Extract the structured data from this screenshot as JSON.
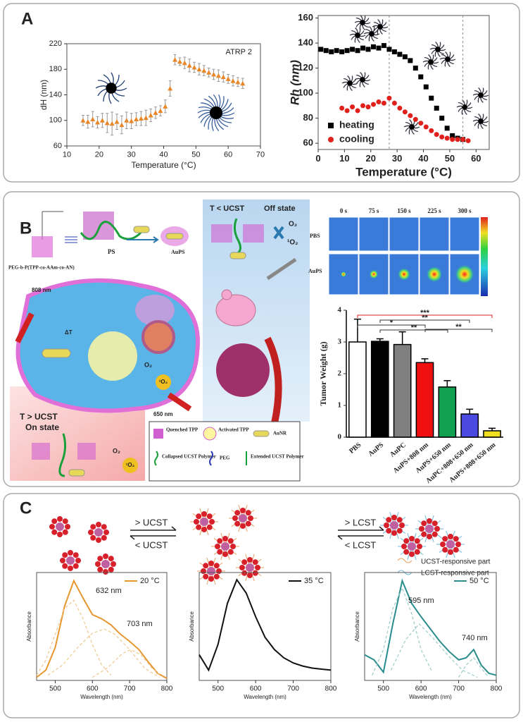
{
  "panels": {
    "a": "A",
    "b": "B",
    "c": "C"
  },
  "diagram": {
    "polymer": "PEG-b-P(TPP-co-AAm-co-AN)",
    "ps": "PS",
    "aups": "AuPS",
    "off_state_1": "T < UCST",
    "off_state_2": "Off state",
    "laser808": "808 nm",
    "laser650": "650 nm",
    "on_state_1": "T > UCST",
    "on_state_2": "On state",
    "o2": "O₂",
    "singlet": "¹O₂",
    "dt": "ΔT",
    "legend": [
      "Quenched TPP",
      "Activated TPP",
      "AuNR",
      "Collapsed UCST Polymer",
      "PEG",
      "Extended UCST Polymer"
    ],
    "thermal_times": [
      "0 s",
      "75 s",
      "150 s",
      "225 s",
      "300 s"
    ],
    "thermal_rows": [
      "PBS",
      "AuPS"
    ],
    "ucst_up": "> UCST",
    "ucst_down": "< UCST",
    "lcst_up": "> LCST",
    "lcst_down": "< LCST",
    "ucst_part": "UCST-responsive part",
    "lcst_part": "LCST-responsive part"
  },
  "chart_data": [
    {
      "type": "scatter",
      "xlabel": "Temperature (°C)",
      "ylabel": "dH (nm)",
      "annotation": "ATRP 2",
      "xlim": [
        10,
        70
      ],
      "xticks": [
        10,
        20,
        30,
        40,
        50,
        60,
        70
      ],
      "ylim": [
        60,
        220
      ],
      "yticks": [
        60,
        100,
        140,
        180,
        220
      ],
      "series": [
        {
          "color": "#e8862a",
          "marker": "triangle",
          "x": [
            15,
            16.5,
            18,
            19.5,
            21,
            22.5,
            24,
            25.5,
            27,
            28.5,
            30,
            31.5,
            33,
            34.5,
            36,
            37.5,
            39,
            40.5,
            42,
            43.5,
            45,
            46.5,
            48,
            49.5,
            51,
            52.5,
            54,
            55.5,
            57,
            58.5,
            60,
            61.5,
            63,
            64.5
          ],
          "values": [
            100,
            98,
            102,
            97,
            100,
            96,
            95,
            98,
            93,
            100,
            99,
            102,
            103,
            104,
            108,
            112,
            115,
            122,
            150,
            195,
            192,
            190,
            186,
            183,
            180,
            178,
            175,
            172,
            170,
            168,
            165,
            162,
            160,
            158
          ],
          "errors": [
            8,
            10,
            12,
            9,
            11,
            15,
            18,
            12,
            14,
            13,
            12,
            10,
            11,
            12,
            10,
            9,
            8,
            10,
            12,
            8,
            6,
            9,
            10,
            8,
            9,
            8,
            7,
            8,
            9,
            8,
            7,
            8,
            7,
            8
          ]
        }
      ]
    },
    {
      "type": "scatter",
      "xlabel": "Temperature (°C)",
      "ylabel": "Rh (nm)",
      "xlim": [
        0,
        65
      ],
      "xticks": [
        0,
        10,
        20,
        30,
        40,
        50,
        60
      ],
      "ylim": [
        55,
        162
      ],
      "yticks": [
        60,
        80,
        100,
        120,
        140,
        160
      ],
      "reference_lines": [
        27,
        55
      ],
      "series": [
        {
          "name": "heating",
          "color": "#000000",
          "marker": "square",
          "x": [
            1,
            3,
            5,
            7,
            9,
            11,
            13,
            15,
            17,
            19,
            21,
            23,
            25,
            27,
            29,
            31,
            33,
            35,
            37,
            39,
            41,
            43,
            45,
            47,
            49,
            51,
            53,
            55
          ],
          "values": [
            135,
            134,
            133,
            134,
            133,
            134,
            135,
            134,
            136,
            135,
            137,
            136,
            138,
            135,
            133,
            131,
            129,
            126,
            120,
            113,
            105,
            96,
            88,
            80,
            72,
            66,
            64,
            63
          ]
        },
        {
          "name": "cooling",
          "color": "#e0201b",
          "marker": "circle",
          "x": [
            9,
            11,
            13,
            15,
            17,
            19,
            21,
            23,
            25,
            27,
            29,
            31,
            33,
            35,
            37,
            39,
            41,
            43,
            45,
            47,
            49,
            51,
            53,
            55,
            57
          ],
          "values": [
            88,
            86,
            89,
            86,
            90,
            89,
            91,
            93,
            92,
            96,
            92,
            88,
            85,
            82,
            79,
            76,
            73,
            70,
            67,
            65,
            64,
            63,
            63,
            63,
            62
          ]
        }
      ]
    },
    {
      "type": "bar",
      "ylabel": "Tumor Weight  (g)",
      "categories": [
        "PBS",
        "AuPS",
        "AuPC",
        "AuPS+808 nm",
        "AuPS+650 nm",
        "AuPC+808+650 nm",
        "AuPS+808+650 nm"
      ],
      "values": [
        3.0,
        3.02,
        2.92,
        2.35,
        1.58,
        0.73,
        0.2
      ],
      "errors": [
        0.72,
        0.08,
        0.4,
        0.12,
        0.2,
        0.15,
        0.08
      ],
      "colors": [
        "#ffffff",
        "#000000",
        "#808080",
        "#f01010",
        "#10a050",
        "#4a4ae0",
        "#f0e020"
      ],
      "ylim": [
        0,
        4
      ],
      "yticks": [
        0,
        1,
        2,
        3,
        4
      ],
      "annotations": [
        "***",
        "**",
        "*",
        "**",
        "**"
      ]
    },
    {
      "type": "line",
      "xlabel": "Wavelength (nm)",
      "ylabel": "Absorbance",
      "annotations": [
        "632 nm",
        "703 nm"
      ],
      "xlim": [
        450,
        800
      ],
      "xticks": [
        500,
        600,
        700,
        800
      ],
      "ylim": [
        0,
        1.05
      ],
      "series": [
        {
          "name": "20 °C",
          "color": "#e8962e",
          "x": [
            450,
            475,
            500,
            525,
            550,
            575,
            600,
            625,
            650,
            675,
            700,
            725,
            750,
            775,
            800
          ],
          "values": [
            0.03,
            0.1,
            0.32,
            0.72,
            0.97,
            0.8,
            0.64,
            0.6,
            0.54,
            0.45,
            0.38,
            0.3,
            0.18,
            0.07,
            0.02
          ]
        },
        {
          "color": "#f0c890",
          "dash": true,
          "x": [
            450,
            475,
            500,
            525,
            550,
            575,
            600,
            625,
            650
          ],
          "values": [
            0.05,
            0.2,
            0.45,
            0.7,
            0.78,
            0.6,
            0.35,
            0.15,
            0.05
          ]
        },
        {
          "color": "#f0c890",
          "dash": true,
          "x": [
            480,
            520,
            560,
            600,
            632,
            660,
            700,
            740,
            780
          ],
          "values": [
            0.05,
            0.15,
            0.32,
            0.46,
            0.5,
            0.45,
            0.3,
            0.12,
            0.03
          ]
        },
        {
          "color": "#f0c890",
          "dash": true,
          "x": [
            600,
            640,
            680,
            703,
            730,
            760,
            790
          ],
          "values": [
            0.03,
            0.12,
            0.26,
            0.3,
            0.25,
            0.12,
            0.03
          ]
        }
      ]
    },
    {
      "type": "line",
      "xlabel": "Wavelength (nm)",
      "ylabel": "Absorbance",
      "xlim": [
        450,
        800
      ],
      "xticks": [
        500,
        600,
        700,
        800
      ],
      "ylim": [
        0,
        1.05
      ],
      "series": [
        {
          "name": "35 °C",
          "color": "#111111",
          "x": [
            450,
            475,
            500,
            525,
            550,
            575,
            600,
            625,
            650,
            675,
            700,
            725,
            750,
            775,
            800
          ],
          "values": [
            0.25,
            0.1,
            0.35,
            0.75,
            0.98,
            0.85,
            0.62,
            0.42,
            0.3,
            0.22,
            0.17,
            0.14,
            0.12,
            0.11,
            0.1
          ]
        }
      ]
    },
    {
      "type": "line",
      "xlabel": "Wavelength (nm)",
      "ylabel": "Absorbance",
      "annotations": [
        "595 nm",
        "740 nm"
      ],
      "xlim": [
        450,
        800
      ],
      "xticks": [
        500,
        600,
        700,
        800
      ],
      "ylim": [
        0,
        1.05
      ],
      "series": [
        {
          "name": "50 °C",
          "color": "#2a8c8c",
          "x": [
            450,
            475,
            500,
            525,
            550,
            575,
            600,
            625,
            650,
            675,
            700,
            720,
            740,
            760,
            780,
            800
          ],
          "values": [
            0.25,
            0.2,
            0.08,
            0.55,
            0.97,
            0.75,
            0.62,
            0.5,
            0.38,
            0.28,
            0.2,
            0.22,
            0.3,
            0.15,
            0.07,
            0.05
          ]
        },
        {
          "color": "#9ccaca",
          "dash": true,
          "x": [
            470,
            500,
            525,
            550,
            575,
            600,
            630
          ],
          "values": [
            0.05,
            0.3,
            0.7,
            0.9,
            0.65,
            0.3,
            0.08
          ]
        },
        {
          "color": "#9ccaca",
          "dash": true,
          "x": [
            520,
            560,
            595,
            630,
            670,
            710,
            750
          ],
          "values": [
            0.1,
            0.4,
            0.55,
            0.42,
            0.25,
            0.1,
            0.03
          ]
        },
        {
          "color": "#9ccaca",
          "dash": true,
          "x": [
            700,
            720,
            740,
            760,
            780
          ],
          "values": [
            0.03,
            0.15,
            0.22,
            0.12,
            0.03
          ]
        }
      ]
    }
  ]
}
